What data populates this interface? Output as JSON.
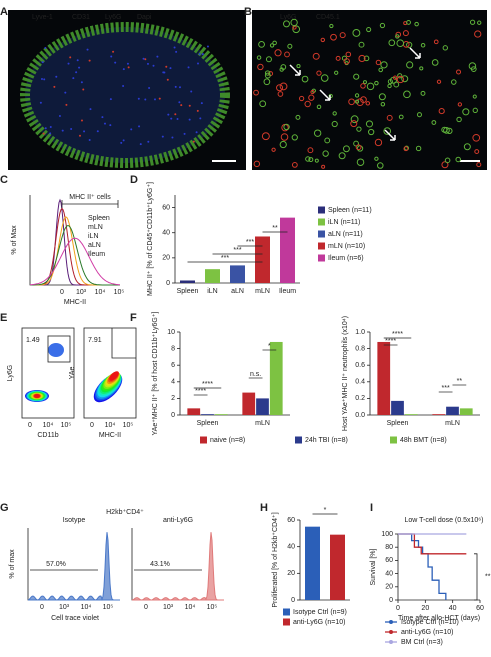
{
  "panel_labels": [
    "A",
    "B",
    "C",
    "D",
    "E",
    "F",
    "G",
    "H",
    "I"
  ],
  "panel_a": {
    "stains": [
      "Lyve-1",
      "CD31",
      "Ly6G",
      "Dapi"
    ]
  },
  "panel_b": {
    "stains": [
      "Ly6G",
      "CD45.1"
    ]
  },
  "panel_c": {
    "gate": "MHC II⁺ cells",
    "legend": [
      "Spleen",
      "mLN",
      "iLN",
      "aLN",
      "Ileum"
    ],
    "ylabel": "% of Max",
    "xlabel": "MHC-II",
    "xticks": [
      "0",
      "10³",
      "10⁴",
      "10⁵"
    ]
  },
  "panel_e": {
    "plots": [
      {
        "gate": "1.49",
        "xlabel": "CD11b",
        "ylabel": "Ly6G",
        "xticks": [
          "0",
          "10⁴",
          "10⁵"
        ]
      },
      {
        "gate": "7.91",
        "xlabel": "MHC-II",
        "ylabel": "YAe",
        "xticks": [
          "0",
          "10⁴",
          "10⁵"
        ]
      }
    ]
  },
  "panel_g": {
    "title": "H2kb⁺CD4⁺",
    "plots": [
      {
        "name": "Isotype",
        "gate": "57.0%"
      },
      {
        "name": "anti-Ly6G",
        "gate": "43.1%"
      }
    ],
    "ylabel": "% of max",
    "xlabel": "Cell trace violet",
    "xticks": [
      "0",
      "10³",
      "10⁴",
      "10⁵"
    ]
  },
  "chart_data": [
    {
      "type": "bar",
      "ylabel": "MHC II⁺ [% of CD45⁺CD11b⁺Ly6G⁺]",
      "categories": [
        "Spleen",
        "iLN",
        "aLN",
        "mLN",
        "Ileum"
      ],
      "values": [
        2,
        11,
        14,
        37,
        52
      ],
      "colors": [
        "#2b2e7a",
        "#7dc242",
        "#3a53a4",
        "#c0282d",
        "#c0399b"
      ],
      "legend": [
        "Spleen (n=11)",
        "iLN (n=11)",
        "aLN (n=11)",
        "mLN (n=10)",
        "Ileum (n=6)"
      ],
      "ylim": [
        0,
        70
      ],
      "yticks": [
        0,
        20,
        40,
        60
      ],
      "annotations": [
        "***",
        "***",
        "***",
        "**"
      ]
    },
    {
      "type": "bar",
      "ylabel": "YAe⁺MHC II⁺ [% of host CD11b⁺Ly6G⁺]",
      "categories": [
        "Spleen",
        "mLN"
      ],
      "series": [
        {
          "name": "naive (n=8)",
          "color": "#c0282d",
          "values": [
            0.8,
            2.7
          ]
        },
        {
          "name": "24h TBI (n=8)",
          "color": "#2b3a8c",
          "values": [
            0.1,
            2.0
          ]
        },
        {
          "name": "48h BMT (n=8)",
          "color": "#7dc242",
          "values": [
            0.1,
            8.8
          ]
        }
      ],
      "ylim": [
        0,
        10
      ],
      "yticks": [
        0,
        2,
        4,
        6,
        8,
        10
      ],
      "annotations": [
        "****",
        "****",
        "n.s.",
        "*"
      ]
    },
    {
      "type": "bar",
      "ylabel": "Host YAe⁺MHC II⁺ neutrophils (x10⁴)",
      "categories": [
        "Spleen",
        "mLN"
      ],
      "series": [
        {
          "color": "#c0282d",
          "values": [
            0.88,
            0.01
          ]
        },
        {
          "color": "#2b3a8c",
          "values": [
            0.17,
            0.1
          ]
        },
        {
          "color": "#7dc242",
          "values": [
            0.01,
            0.08
          ]
        }
      ],
      "ylim": [
        0,
        1
      ],
      "yticks": [
        {
          "value": 0,
          "label": "0.0"
        },
        0.2,
        0.4,
        0.6,
        0.8,
        {
          "value": 1,
          "label": "1.0"
        }
      ],
      "annotations": [
        "****",
        "****",
        "***",
        "**"
      ]
    },
    {
      "type": "bar",
      "ylabel": "Proliferated [% of H2kb⁺CD4⁺]",
      "categories": [
        null,
        null
      ],
      "values": [
        55,
        49
      ],
      "colors": [
        "#2b5fb8",
        "#c0282d"
      ],
      "legend": [
        "Isotype Ctrl (n=9)",
        "anti-Ly6G (n=10)"
      ],
      "ylim": [
        0,
        60
      ],
      "yticks": [
        0,
        20,
        40,
        60
      ],
      "annotations": [
        "*"
      ]
    },
    {
      "type": "line",
      "title": "Low T-cell dose (0.5x10⁶)",
      "xlabel": "Time after allo-HCT (days)",
      "ylabel": "Survival [%]",
      "series": [
        {
          "name": "Isotype Ctrl (n=10)",
          "color": "#2b5fb8",
          "x": [
            0,
            10,
            15,
            18,
            22,
            25,
            30,
            35
          ],
          "values": [
            100,
            90,
            80,
            70,
            50,
            30,
            10,
            0
          ]
        },
        {
          "name": "anti-Ly6G (n=10)",
          "color": "#c0282d",
          "x": [
            0,
            12,
            17,
            50
          ],
          "values": [
            100,
            80,
            70,
            70
          ]
        },
        {
          "name": "BM Ctrl (n=3)",
          "color": "#a9a6e0",
          "x": [
            0,
            50
          ],
          "values": [
            100,
            100
          ]
        }
      ],
      "xlim": [
        0,
        60
      ],
      "xticks": [
        0,
        20,
        40,
        60
      ],
      "ylim": [
        0,
        100
      ],
      "yticks": [
        0,
        20,
        40,
        60,
        80,
        100
      ],
      "annotations": [
        "**"
      ]
    }
  ]
}
